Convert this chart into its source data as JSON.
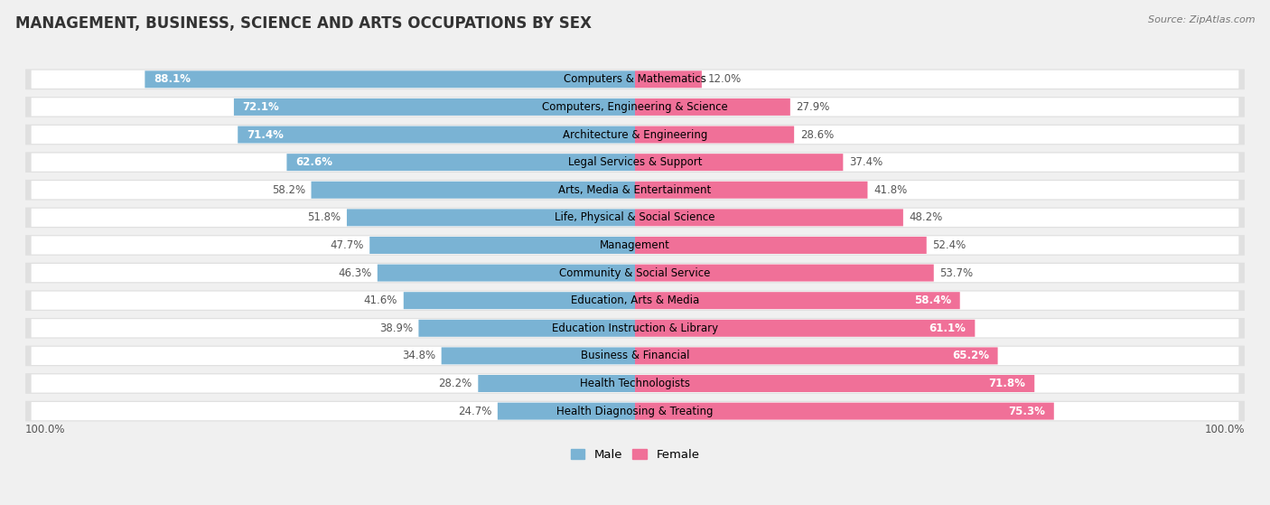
{
  "title": "MANAGEMENT, BUSINESS, SCIENCE AND ARTS OCCUPATIONS BY SEX",
  "source": "Source: ZipAtlas.com",
  "categories": [
    "Computers & Mathematics",
    "Computers, Engineering & Science",
    "Architecture & Engineering",
    "Legal Services & Support",
    "Arts, Media & Entertainment",
    "Life, Physical & Social Science",
    "Management",
    "Community & Social Service",
    "Education, Arts & Media",
    "Education Instruction & Library",
    "Business & Financial",
    "Health Technologists",
    "Health Diagnosing & Treating"
  ],
  "male_pct": [
    88.1,
    72.1,
    71.4,
    62.6,
    58.2,
    51.8,
    47.7,
    46.3,
    41.6,
    38.9,
    34.8,
    28.2,
    24.7
  ],
  "female_pct": [
    12.0,
    27.9,
    28.6,
    37.4,
    41.8,
    48.2,
    52.4,
    53.7,
    58.4,
    61.1,
    65.2,
    71.8,
    75.3
  ],
  "male_color": "#7ab3d4",
  "female_color": "#f07098",
  "bg_color": "#f0f0f0",
  "row_bg_color": "#e8e8e8",
  "title_fontsize": 12,
  "label_fontsize": 8.5,
  "pct_fontsize": 8.5,
  "legend_fontsize": 9.5
}
